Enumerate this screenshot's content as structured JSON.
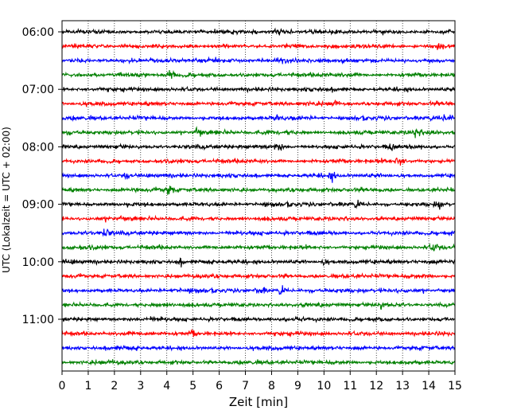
{
  "chart_data": {
    "type": "line",
    "title": "",
    "xlabel": "Zeit  [min]",
    "ylabel": "UTC (Lokalzeit = UTC + 02:00)",
    "xlim": [
      0,
      15
    ],
    "x_ticks": [
      0,
      1,
      2,
      3,
      4,
      5,
      6,
      7,
      8,
      9,
      10,
      11,
      12,
      13,
      14,
      15
    ],
    "x_tick_labels": [
      "0",
      "1",
      "2",
      "3",
      "4",
      "5",
      "6",
      "7",
      "8",
      "9",
      "10",
      "11",
      "12",
      "13",
      "14",
      "15"
    ],
    "y_ticks": [
      "06:00",
      "07:00",
      "08:00",
      "09:00",
      "10:00",
      "11:00"
    ],
    "grid": "vertical-dotted",
    "trace_interval_min": 15,
    "colors": [
      "#000000",
      "#ff0000",
      "#0000ff",
      "#008000"
    ],
    "series": [
      {
        "start": "06:00",
        "color": "#000000"
      },
      {
        "start": "06:15",
        "color": "#ff0000"
      },
      {
        "start": "06:30",
        "color": "#0000ff"
      },
      {
        "start": "06:45",
        "color": "#008000"
      },
      {
        "start": "07:00",
        "color": "#000000"
      },
      {
        "start": "07:15",
        "color": "#ff0000"
      },
      {
        "start": "07:30",
        "color": "#0000ff"
      },
      {
        "start": "07:45",
        "color": "#008000"
      },
      {
        "start": "08:00",
        "color": "#000000"
      },
      {
        "start": "08:15",
        "color": "#ff0000"
      },
      {
        "start": "08:30",
        "color": "#0000ff"
      },
      {
        "start": "08:45",
        "color": "#008000"
      },
      {
        "start": "09:00",
        "color": "#000000"
      },
      {
        "start": "09:15",
        "color": "#ff0000"
      },
      {
        "start": "09:30",
        "color": "#0000ff"
      },
      {
        "start": "09:45",
        "color": "#008000"
      },
      {
        "start": "10:00",
        "color": "#000000"
      },
      {
        "start": "10:15",
        "color": "#ff0000"
      },
      {
        "start": "10:30",
        "color": "#0000ff"
      },
      {
        "start": "10:45",
        "color": "#008000"
      },
      {
        "start": "11:00",
        "color": "#000000"
      },
      {
        "start": "11:15",
        "color": "#ff0000"
      },
      {
        "start": "11:30",
        "color": "#0000ff"
      },
      {
        "start": "11:45",
        "color": "#008000"
      }
    ],
    "bursts": [
      {
        "trace": 0,
        "minute": 8.3,
        "amplitude": 2.2
      },
      {
        "trace": 1,
        "minute": 14.4,
        "amplitude": 2.2
      },
      {
        "trace": 2,
        "minute": 8.4,
        "amplitude": 2.4
      },
      {
        "trace": 3,
        "minute": 4.1,
        "amplitude": 1.8
      },
      {
        "trace": 5,
        "minute": 10.4,
        "amplitude": 1.7
      },
      {
        "trace": 6,
        "minute": 8.2,
        "amplitude": 1.9
      },
      {
        "trace": 6,
        "minute": 14.7,
        "amplitude": 1.8
      },
      {
        "trace": 7,
        "minute": 5.2,
        "amplitude": 1.8
      },
      {
        "trace": 7,
        "minute": 13.5,
        "amplitude": 2.0
      },
      {
        "trace": 8,
        "minute": 8.3,
        "amplitude": 2.0
      },
      {
        "trace": 8,
        "minute": 12.6,
        "amplitude": 1.8
      },
      {
        "trace": 9,
        "minute": 12.9,
        "amplitude": 2.8
      },
      {
        "trace": 10,
        "minute": 2.5,
        "amplitude": 2.0
      },
      {
        "trace": 10,
        "minute": 10.3,
        "amplitude": 2.0
      },
      {
        "trace": 11,
        "minute": 4.1,
        "amplitude": 3.4
      },
      {
        "trace": 12,
        "minute": 14.4,
        "amplitude": 2.2
      },
      {
        "trace": 12,
        "minute": 11.3,
        "amplitude": 1.6
      },
      {
        "trace": 14,
        "minute": 1.7,
        "amplitude": 2.2
      },
      {
        "trace": 15,
        "minute": 14.2,
        "amplitude": 1.8
      },
      {
        "trace": 16,
        "minute": 4.5,
        "amplitude": 1.6
      },
      {
        "trace": 16,
        "minute": 10.0,
        "amplitude": 1.6
      },
      {
        "trace": 18,
        "minute": 8.4,
        "amplitude": 2.4
      },
      {
        "trace": 18,
        "minute": 7.6,
        "amplitude": 1.8
      },
      {
        "trace": 19,
        "minute": 12.2,
        "amplitude": 1.6
      },
      {
        "trace": 21,
        "minute": 5.0,
        "amplitude": 1.4
      }
    ]
  }
}
